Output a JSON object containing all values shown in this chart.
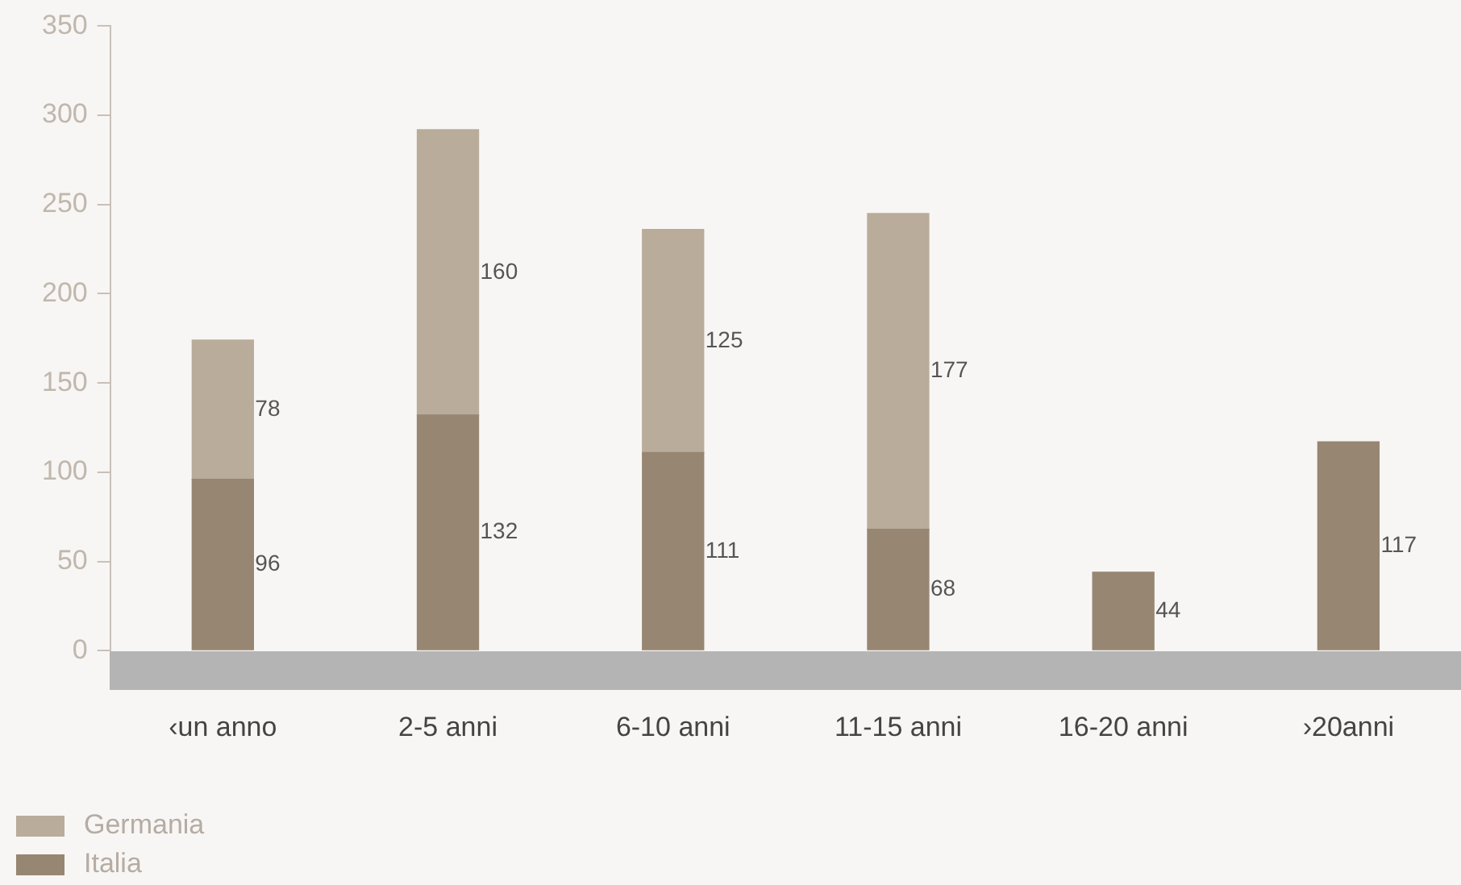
{
  "chart_data": {
    "type": "bar",
    "stacked": true,
    "categories": [
      "‹un anno",
      "2-5 anni",
      "6-10 anni",
      "11-15 anni",
      "16-20 anni",
      "›20anni"
    ],
    "series": [
      {
        "name": "Italia",
        "color": "#978672",
        "values": [
          96,
          132,
          111,
          68,
          44,
          117
        ]
      },
      {
        "name": "Germania",
        "color": "#b9ac9b",
        "values": [
          78,
          160,
          125,
          177,
          null,
          null
        ]
      }
    ],
    "ylim": [
      0,
      350
    ],
    "yticks": [
      0,
      50,
      100,
      150,
      200,
      250,
      300,
      350
    ],
    "grid": false,
    "legend": "bottom left",
    "data_labels": true
  }
}
